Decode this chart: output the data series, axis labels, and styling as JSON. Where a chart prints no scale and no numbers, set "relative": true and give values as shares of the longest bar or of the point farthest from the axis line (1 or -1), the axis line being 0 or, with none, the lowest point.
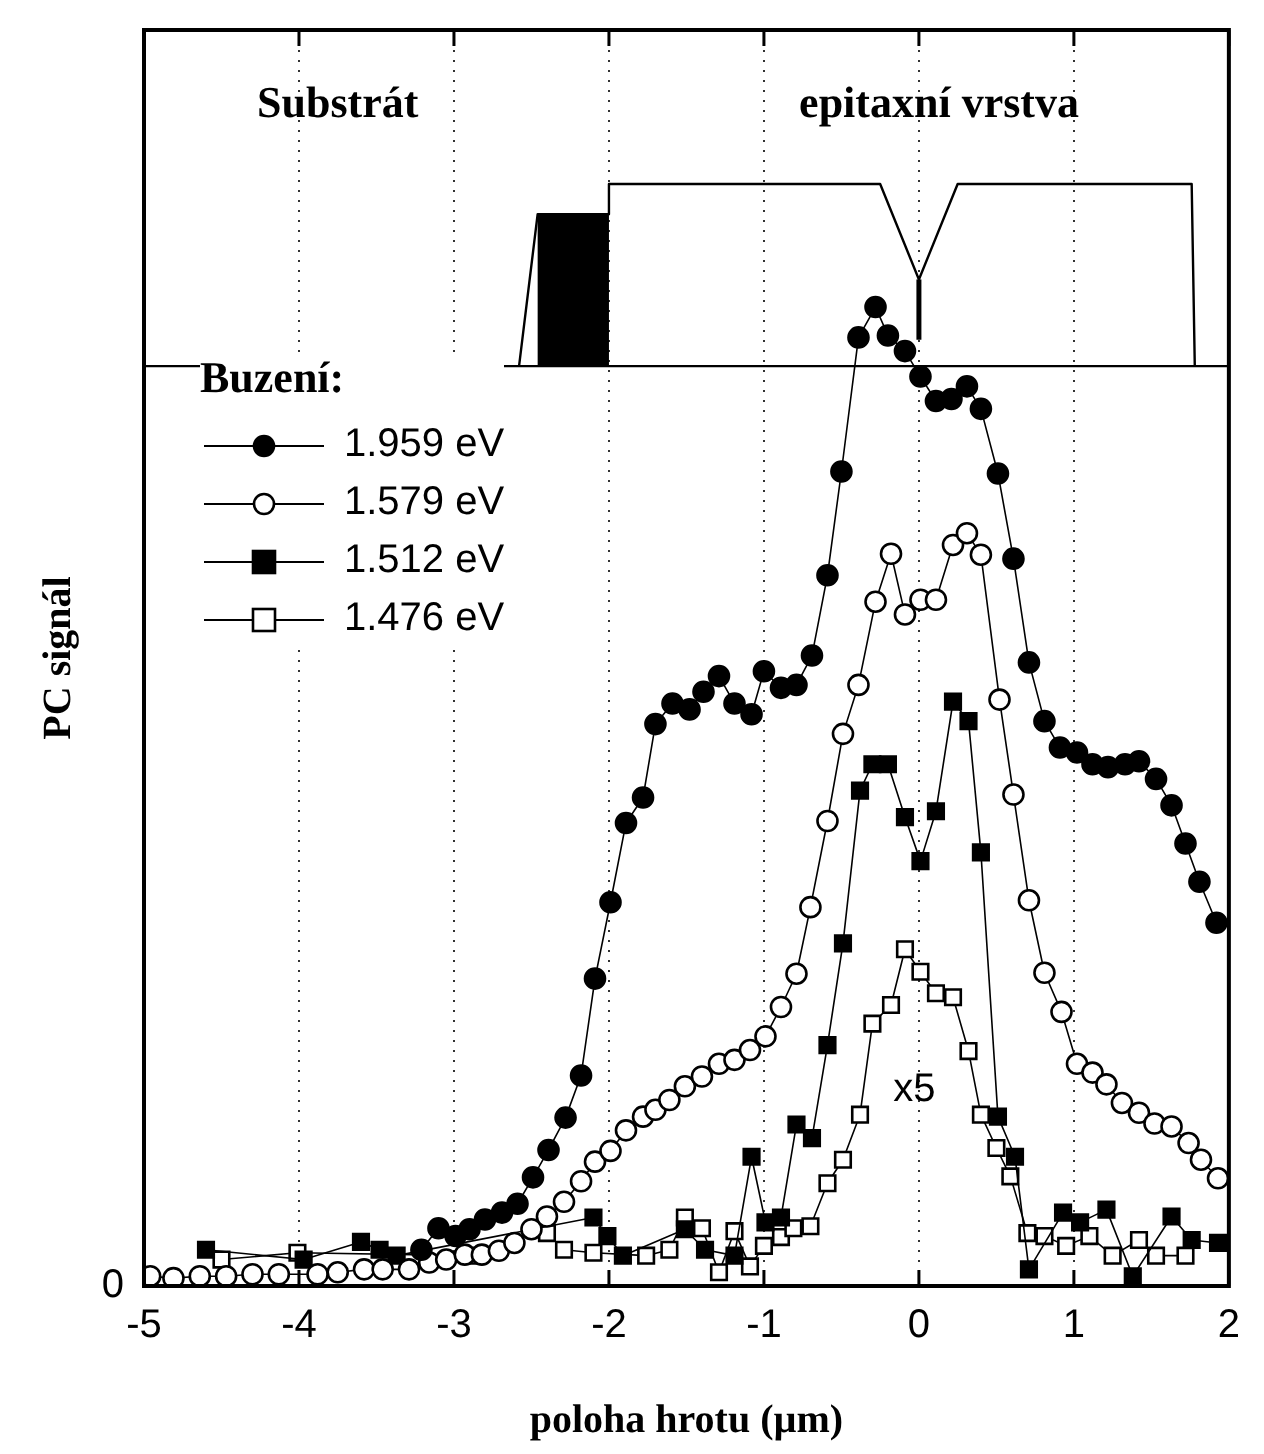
{
  "chart_data": {
    "type": "line",
    "relative": true,
    "xlabel": "poloha hrotu (µm)",
    "ylabel": "PC signál",
    "legend_title": "Buzení:",
    "legend": "top left",
    "grid": "x",
    "marker": "circle",
    "line_style": "solid",
    "xlim": [
      -5,
      2
    ],
    "xticks": [
      -5,
      -4,
      -3,
      -2,
      -1,
      0,
      1,
      2
    ],
    "annotations": [
      "Substrát",
      "epitaxní vrstva",
      "x5",
      "0"
    ],
    "series": [
      {
        "name": "1.959 eV",
        "color": "#000000",
        "x": [
          -3.21,
          -3.1,
          -2.99,
          -2.9,
          -2.8,
          -2.69,
          -2.59,
          -2.49,
          -2.39,
          -2.28,
          -2.18,
          -2.09,
          -1.99,
          -1.89,
          -1.78,
          -1.7,
          -1.59,
          -1.48,
          -1.39,
          -1.29,
          -1.19,
          -1.08,
          -1.0,
          -0.89,
          -0.79,
          -0.69,
          -0.59,
          -0.5,
          -0.39,
          -0.28,
          -0.2,
          -0.09,
          0.01,
          0.11,
          0.21,
          0.31,
          0.4,
          0.51,
          0.61,
          0.71,
          0.81,
          0.91,
          1.02,
          1.12,
          1.22,
          1.33,
          1.42,
          1.53,
          1.63,
          1.72,
          1.81,
          1.92
        ],
        "values": [
          0.037,
          0.059,
          0.051,
          0.058,
          0.068,
          0.075,
          0.084,
          0.111,
          0.139,
          0.172,
          0.215,
          0.314,
          0.392,
          0.473,
          0.499,
          0.574,
          0.595,
          0.589,
          0.607,
          0.623,
          0.595,
          0.584,
          0.628,
          0.611,
          0.614,
          0.644,
          0.726,
          0.832,
          0.969,
          1.0,
          0.971,
          0.955,
          0.929,
          0.904,
          0.906,
          0.919,
          0.896,
          0.83,
          0.743,
          0.637,
          0.577,
          0.55,
          0.545,
          0.533,
          0.53,
          0.533,
          0.536,
          0.518,
          0.491,
          0.452,
          0.413,
          0.371
        ]
      },
      {
        "name": "1.579 eV",
        "color": "#ffffff",
        "x": [
          -4.96,
          -4.81,
          -4.64,
          -4.47,
          -4.3,
          -4.13,
          -3.88,
          -3.75,
          -3.58,
          -3.46,
          -3.29,
          -3.16,
          -3.05,
          -2.93,
          -2.82,
          -2.71,
          -2.61,
          -2.5,
          -2.4,
          -2.29,
          -2.18,
          -2.09,
          -1.99,
          -1.89,
          -1.78,
          -1.7,
          -1.61,
          -1.51,
          -1.4,
          -1.29,
          -1.19,
          -1.09,
          -0.99,
          -0.89,
          -0.79,
          -0.7,
          -0.59,
          -0.49,
          -0.39,
          -0.28,
          -0.18,
          -0.09,
          0.01,
          0.11,
          0.22,
          0.31,
          0.4,
          0.52,
          0.61,
          0.71,
          0.81,
          0.92,
          1.02,
          1.12,
          1.21,
          1.31,
          1.42,
          1.52,
          1.63,
          1.74,
          1.82,
          1.93
        ],
        "values": [
          0.01,
          0.008,
          0.01,
          0.01,
          0.012,
          0.012,
          0.012,
          0.014,
          0.017,
          0.017,
          0.017,
          0.024,
          0.027,
          0.032,
          0.032,
          0.036,
          0.044,
          0.058,
          0.071,
          0.086,
          0.107,
          0.127,
          0.138,
          0.159,
          0.173,
          0.18,
          0.19,
          0.204,
          0.214,
          0.227,
          0.231,
          0.241,
          0.255,
          0.285,
          0.319,
          0.387,
          0.475,
          0.564,
          0.614,
          0.699,
          0.748,
          0.686,
          0.701,
          0.701,
          0.757,
          0.769,
          0.747,
          0.599,
          0.502,
          0.394,
          0.32,
          0.28,
          0.227,
          0.218,
          0.206,
          0.187,
          0.177,
          0.166,
          0.163,
          0.146,
          0.129,
          0.11
        ]
      },
      {
        "name": "1.512 eV",
        "color": "#000000",
        "marker": "square",
        "x": [
          -4.6,
          -3.97,
          -3.6,
          -3.48,
          -3.37,
          -2.1,
          -2.01,
          -1.91,
          -1.51,
          -1.38,
          -1.19,
          -1.08,
          -0.99,
          -0.89,
          -0.79,
          -0.69,
          -0.59,
          -0.49,
          -0.38,
          -0.3,
          -0.2,
          -0.09,
          0.01,
          0.11,
          0.22,
          0.32,
          0.4,
          0.51,
          0.62,
          0.71,
          0.93,
          1.04,
          1.21,
          1.38,
          1.63,
          1.76,
          1.93
        ],
        "values": [
          0.037,
          0.027,
          0.045,
          0.037,
          0.031,
          0.07,
          0.051,
          0.031,
          0.058,
          0.037,
          0.031,
          0.132,
          0.065,
          0.07,
          0.165,
          0.151,
          0.246,
          0.35,
          0.506,
          0.533,
          0.533,
          0.479,
          0.434,
          0.485,
          0.597,
          0.577,
          0.443,
          0.173,
          0.132,
          0.017,
          0.075,
          0.065,
          0.078,
          0.01,
          0.071,
          0.047,
          0.044
        ]
      },
      {
        "name": "1.476 eV",
        "color": "#ffffff",
        "marker": "square",
        "x": [
          -4.5,
          -4.01,
          -2.9,
          -2.61,
          -2.4,
          -2.29,
          -2.1,
          -1.76,
          -1.61,
          -1.51,
          -1.4,
          -1.29,
          -1.19,
          -1.09,
          -1.0,
          -0.89,
          -0.81,
          -0.7,
          -0.59,
          -0.49,
          -0.38,
          -0.3,
          -0.18,
          -0.09,
          0.01,
          0.11,
          0.22,
          0.32,
          0.4,
          0.5,
          0.59,
          0.7,
          0.81,
          0.95,
          1.1,
          1.25,
          1.42,
          1.53,
          1.72
        ],
        "values": [
          0.027,
          0.034,
          0.031,
          null,
          0.054,
          0.037,
          0.034,
          0.031,
          0.037,
          0.07,
          0.059,
          0.014,
          0.056,
          0.02,
          0.041,
          0.05,
          0.059,
          0.061,
          0.105,
          0.129,
          0.175,
          0.268,
          0.287,
          0.344,
          0.321,
          0.299,
          0.295,
          0.24,
          0.175,
          0.141,
          0.112,
          0.054,
          0.051,
          0.041,
          0.051,
          0.031,
          0.047,
          0.031,
          0.031
        ]
      }
    ]
  }
}
